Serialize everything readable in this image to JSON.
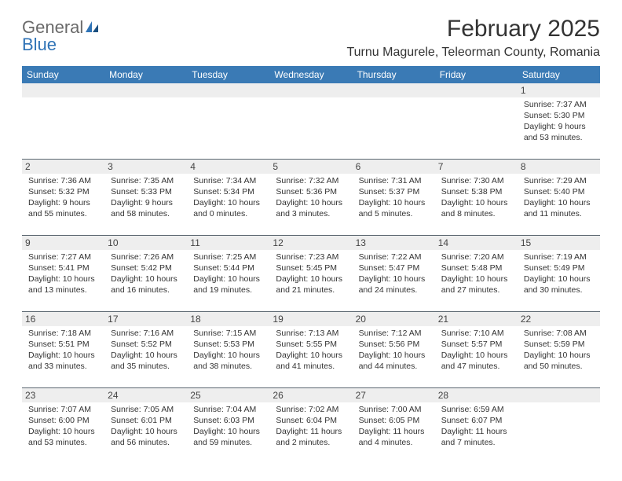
{
  "logo": {
    "text1": "General",
    "text2": "Blue"
  },
  "title": "February 2025",
  "location": "Turnu Magurele, Teleorman County, Romania",
  "colors": {
    "header_bg": "#3a7ab5",
    "header_text": "#ffffff",
    "date_row_bg": "#eeeeee",
    "week_divider": "#5b6770",
    "logo_blue": "#2f73b6",
    "logo_gray": "#6a6a6a",
    "body_text": "#333333"
  },
  "day_names": [
    "Sunday",
    "Monday",
    "Tuesday",
    "Wednesday",
    "Thursday",
    "Friday",
    "Saturday"
  ],
  "weeks": [
    {
      "dates": [
        "",
        "",
        "",
        "",
        "",
        "",
        "1"
      ],
      "cells": [
        {},
        {},
        {},
        {},
        {},
        {},
        {
          "sunrise": "Sunrise: 7:37 AM",
          "sunset": "Sunset: 5:30 PM",
          "day1": "Daylight: 9 hours",
          "day2": "and 53 minutes."
        }
      ]
    },
    {
      "dates": [
        "2",
        "3",
        "4",
        "5",
        "6",
        "7",
        "8"
      ],
      "cells": [
        {
          "sunrise": "Sunrise: 7:36 AM",
          "sunset": "Sunset: 5:32 PM",
          "day1": "Daylight: 9 hours",
          "day2": "and 55 minutes."
        },
        {
          "sunrise": "Sunrise: 7:35 AM",
          "sunset": "Sunset: 5:33 PM",
          "day1": "Daylight: 9 hours",
          "day2": "and 58 minutes."
        },
        {
          "sunrise": "Sunrise: 7:34 AM",
          "sunset": "Sunset: 5:34 PM",
          "day1": "Daylight: 10 hours",
          "day2": "and 0 minutes."
        },
        {
          "sunrise": "Sunrise: 7:32 AM",
          "sunset": "Sunset: 5:36 PM",
          "day1": "Daylight: 10 hours",
          "day2": "and 3 minutes."
        },
        {
          "sunrise": "Sunrise: 7:31 AM",
          "sunset": "Sunset: 5:37 PM",
          "day1": "Daylight: 10 hours",
          "day2": "and 5 minutes."
        },
        {
          "sunrise": "Sunrise: 7:30 AM",
          "sunset": "Sunset: 5:38 PM",
          "day1": "Daylight: 10 hours",
          "day2": "and 8 minutes."
        },
        {
          "sunrise": "Sunrise: 7:29 AM",
          "sunset": "Sunset: 5:40 PM",
          "day1": "Daylight: 10 hours",
          "day2": "and 11 minutes."
        }
      ]
    },
    {
      "dates": [
        "9",
        "10",
        "11",
        "12",
        "13",
        "14",
        "15"
      ],
      "cells": [
        {
          "sunrise": "Sunrise: 7:27 AM",
          "sunset": "Sunset: 5:41 PM",
          "day1": "Daylight: 10 hours",
          "day2": "and 13 minutes."
        },
        {
          "sunrise": "Sunrise: 7:26 AM",
          "sunset": "Sunset: 5:42 PM",
          "day1": "Daylight: 10 hours",
          "day2": "and 16 minutes."
        },
        {
          "sunrise": "Sunrise: 7:25 AM",
          "sunset": "Sunset: 5:44 PM",
          "day1": "Daylight: 10 hours",
          "day2": "and 19 minutes."
        },
        {
          "sunrise": "Sunrise: 7:23 AM",
          "sunset": "Sunset: 5:45 PM",
          "day1": "Daylight: 10 hours",
          "day2": "and 21 minutes."
        },
        {
          "sunrise": "Sunrise: 7:22 AM",
          "sunset": "Sunset: 5:47 PM",
          "day1": "Daylight: 10 hours",
          "day2": "and 24 minutes."
        },
        {
          "sunrise": "Sunrise: 7:20 AM",
          "sunset": "Sunset: 5:48 PM",
          "day1": "Daylight: 10 hours",
          "day2": "and 27 minutes."
        },
        {
          "sunrise": "Sunrise: 7:19 AM",
          "sunset": "Sunset: 5:49 PM",
          "day1": "Daylight: 10 hours",
          "day2": "and 30 minutes."
        }
      ]
    },
    {
      "dates": [
        "16",
        "17",
        "18",
        "19",
        "20",
        "21",
        "22"
      ],
      "cells": [
        {
          "sunrise": "Sunrise: 7:18 AM",
          "sunset": "Sunset: 5:51 PM",
          "day1": "Daylight: 10 hours",
          "day2": "and 33 minutes."
        },
        {
          "sunrise": "Sunrise: 7:16 AM",
          "sunset": "Sunset: 5:52 PM",
          "day1": "Daylight: 10 hours",
          "day2": "and 35 minutes."
        },
        {
          "sunrise": "Sunrise: 7:15 AM",
          "sunset": "Sunset: 5:53 PM",
          "day1": "Daylight: 10 hours",
          "day2": "and 38 minutes."
        },
        {
          "sunrise": "Sunrise: 7:13 AM",
          "sunset": "Sunset: 5:55 PM",
          "day1": "Daylight: 10 hours",
          "day2": "and 41 minutes."
        },
        {
          "sunrise": "Sunrise: 7:12 AM",
          "sunset": "Sunset: 5:56 PM",
          "day1": "Daylight: 10 hours",
          "day2": "and 44 minutes."
        },
        {
          "sunrise": "Sunrise: 7:10 AM",
          "sunset": "Sunset: 5:57 PM",
          "day1": "Daylight: 10 hours",
          "day2": "and 47 minutes."
        },
        {
          "sunrise": "Sunrise: 7:08 AM",
          "sunset": "Sunset: 5:59 PM",
          "day1": "Daylight: 10 hours",
          "day2": "and 50 minutes."
        }
      ]
    },
    {
      "dates": [
        "23",
        "24",
        "25",
        "26",
        "27",
        "28",
        ""
      ],
      "cells": [
        {
          "sunrise": "Sunrise: 7:07 AM",
          "sunset": "Sunset: 6:00 PM",
          "day1": "Daylight: 10 hours",
          "day2": "and 53 minutes."
        },
        {
          "sunrise": "Sunrise: 7:05 AM",
          "sunset": "Sunset: 6:01 PM",
          "day1": "Daylight: 10 hours",
          "day2": "and 56 minutes."
        },
        {
          "sunrise": "Sunrise: 7:04 AM",
          "sunset": "Sunset: 6:03 PM",
          "day1": "Daylight: 10 hours",
          "day2": "and 59 minutes."
        },
        {
          "sunrise": "Sunrise: 7:02 AM",
          "sunset": "Sunset: 6:04 PM",
          "day1": "Daylight: 11 hours",
          "day2": "and 2 minutes."
        },
        {
          "sunrise": "Sunrise: 7:00 AM",
          "sunset": "Sunset: 6:05 PM",
          "day1": "Daylight: 11 hours",
          "day2": "and 4 minutes."
        },
        {
          "sunrise": "Sunrise: 6:59 AM",
          "sunset": "Sunset: 6:07 PM",
          "day1": "Daylight: 11 hours",
          "day2": "and 7 minutes."
        },
        {}
      ]
    }
  ]
}
